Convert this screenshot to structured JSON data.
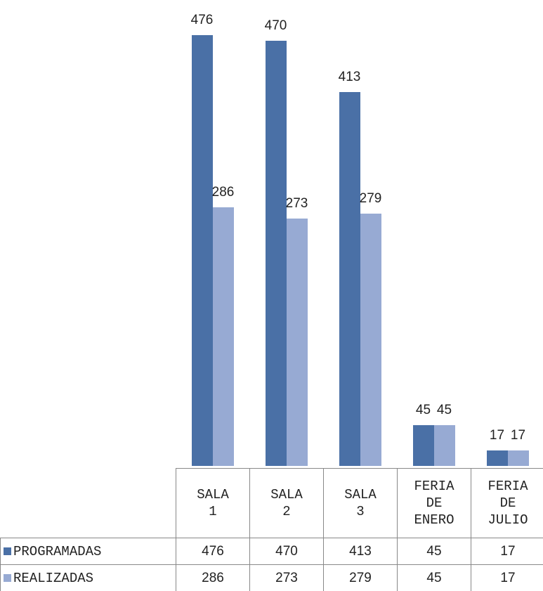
{
  "chart_data": {
    "type": "bar",
    "categories": [
      "SALA 1",
      "SALA 2",
      "SALA 3",
      "FERIA DE ENERO",
      "FERIA DE JULIO"
    ],
    "series": [
      {
        "name": "PROGRAMADAS",
        "color": "#4a70a6",
        "values": [
          476,
          470,
          413,
          45,
          17
        ]
      },
      {
        "name": "REALIZADAS",
        "color": "#97aad3",
        "values": [
          286,
          273,
          279,
          45,
          17
        ]
      }
    ]
  }
}
